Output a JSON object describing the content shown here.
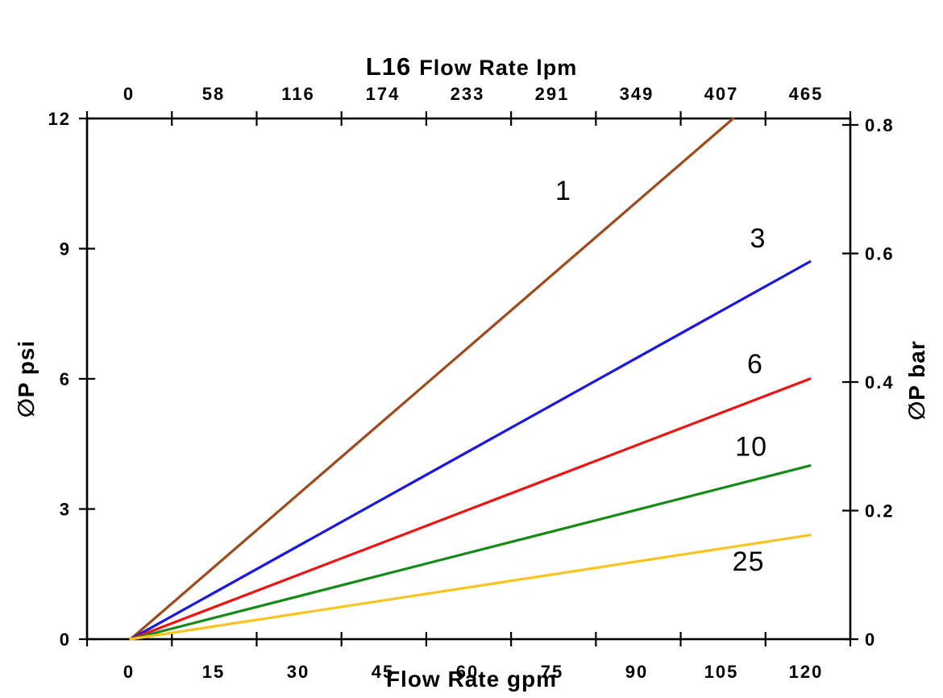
{
  "chart_data": {
    "type": "line",
    "title_model": "L16",
    "title_rest": "Flow Rate lpm",
    "top_axis": {
      "tick_labels": [
        "0",
        "58",
        "116",
        "174",
        "233",
        "291",
        "349",
        "407",
        "465"
      ]
    },
    "bottom_axis": {
      "title": "Flow Rate gpm",
      "tick_labels": [
        "0",
        "15",
        "30",
        "45",
        "60",
        "75",
        "90",
        "105",
        "120"
      ],
      "range_gpm": [
        0,
        120
      ]
    },
    "left_axis": {
      "title": "∅P psi",
      "tick_labels": [
        "12",
        "9",
        "6",
        "3",
        "0"
      ],
      "range_psi": [
        0,
        12
      ]
    },
    "right_axis": {
      "title": "∅P bar",
      "tick_labels": [
        "0.8",
        "0.6",
        "0.4",
        "0.2",
        "0"
      ],
      "range_bar": [
        0,
        0.8
      ]
    },
    "axis_color": "#000000",
    "series": [
      {
        "label": "1",
        "color": "#9e4a1c",
        "points_gpm_psi": [
          [
            0,
            0
          ],
          [
            107.1,
            12.0
          ]
        ],
        "label_pos_gpm_psi": [
          77.0,
          10.35
        ]
      },
      {
        "label": "3",
        "color": "#1a18dd",
        "points_gpm_psi": [
          [
            0,
            0
          ],
          [
            120.7,
            8.7
          ]
        ],
        "label_pos_gpm_psi": [
          111.5,
          9.25
        ]
      },
      {
        "label": "6",
        "color": "#ef1313",
        "points_gpm_psi": [
          [
            0,
            0
          ],
          [
            120.7,
            6.0
          ]
        ],
        "label_pos_gpm_psi": [
          111.0,
          6.35
        ]
      },
      {
        "label": "10",
        "color": "#168a16",
        "points_gpm_psi": [
          [
            0,
            0
          ],
          [
            120.7,
            4.0
          ]
        ],
        "label_pos_gpm_psi": [
          110.3,
          4.45
        ]
      },
      {
        "label": "25",
        "color": "#f9c41f",
        "points_gpm_psi": [
          [
            0,
            0
          ],
          [
            120.7,
            2.4
          ]
        ],
        "label_pos_gpm_psi": [
          109.8,
          1.8
        ]
      }
    ]
  }
}
